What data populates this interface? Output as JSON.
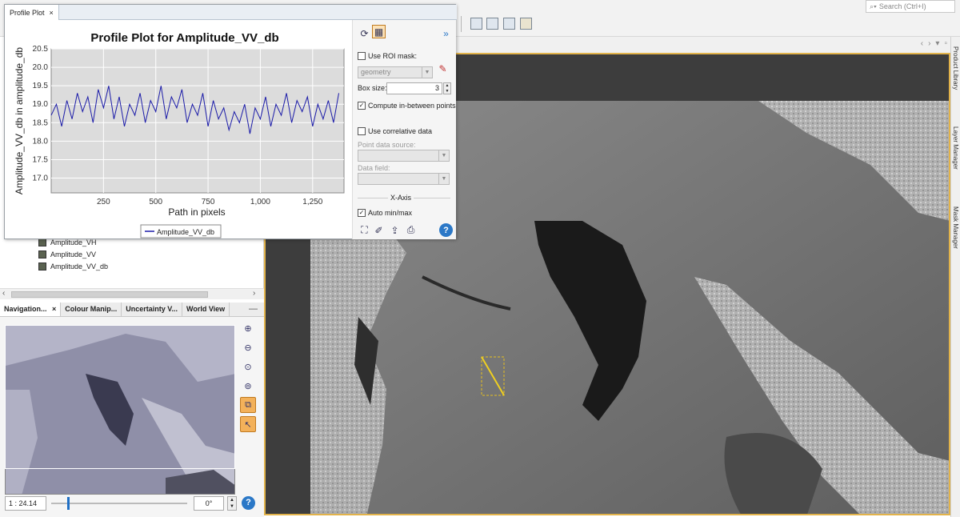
{
  "toolbar": {
    "search_placeholder": "Search (Ctrl+I)"
  },
  "profile_window": {
    "tab_label": "Profile Plot",
    "tab_close": "×",
    "collapse_label": "»",
    "chart_data": {
      "type": "line",
      "title": "Profile Plot for Amplitude_VV_db",
      "xlabel": "Path in pixels",
      "ylabel": "Amplitude_VV_db in amplitude_db",
      "x_ticks": [
        "250",
        "500",
        "750",
        "1,000",
        "1,250"
      ],
      "x_tick_values": [
        250,
        500,
        750,
        1000,
        1250
      ],
      "y_ticks": [
        "17.0",
        "17.5",
        "18.0",
        "18.5",
        "19.0",
        "19.5",
        "20.0",
        "20.5"
      ],
      "y_tick_values": [
        17.0,
        17.5,
        18.0,
        18.5,
        19.0,
        19.5,
        20.0,
        20.5
      ],
      "xlim": [
        0,
        1400
      ],
      "ylim": [
        16.6,
        20.5
      ],
      "grid": true,
      "legend_position": "bottom",
      "series": [
        {
          "name": "Amplitude_VV_db",
          "color": "#1a1aa8",
          "x": [
            0,
            25,
            50,
            75,
            100,
            125,
            150,
            175,
            200,
            225,
            250,
            275,
            300,
            325,
            350,
            375,
            400,
            425,
            450,
            475,
            500,
            525,
            550,
            575,
            600,
            625,
            650,
            675,
            700,
            725,
            750,
            775,
            800,
            825,
            850,
            875,
            900,
            925,
            950,
            975,
            1000,
            1025,
            1050,
            1075,
            1100,
            1125,
            1150,
            1175,
            1200,
            1225,
            1250,
            1275,
            1300,
            1325,
            1350,
            1375
          ],
          "y": [
            18.7,
            19.0,
            18.4,
            19.1,
            18.6,
            19.3,
            18.8,
            19.2,
            18.5,
            19.4,
            18.9,
            19.5,
            18.6,
            19.2,
            18.4,
            19.0,
            18.7,
            19.3,
            18.5,
            19.1,
            18.8,
            19.5,
            18.6,
            19.2,
            18.9,
            19.4,
            18.5,
            19.0,
            18.7,
            19.3,
            18.4,
            19.1,
            18.6,
            18.9,
            18.3,
            18.8,
            18.5,
            19.0,
            18.2,
            18.9,
            18.6,
            19.2,
            18.4,
            19.0,
            18.7,
            19.3,
            18.5,
            19.1,
            18.8,
            19.2,
            18.4,
            19.0,
            18.6,
            19.1,
            18.5,
            19.3
          ]
        }
      ]
    },
    "side_panel": {
      "use_roi_mask": "Use ROI mask:",
      "roi_mask_value": "geometry",
      "box_size_label": "Box size:",
      "box_size_value": "3",
      "compute_between": "Compute in-between points",
      "use_correlative": "Use correlative data",
      "point_source_label": "Point data source:",
      "data_field_label": "Data field:",
      "x_axis_label": "X-Axis",
      "auto_minmax": "Auto min/max",
      "help": "?"
    }
  },
  "product_tree": {
    "items": [
      "Amplitude_VH",
      "Amplitude_VV",
      "Amplitude_VV_db"
    ]
  },
  "navigation": {
    "tabs": [
      "Navigation...",
      "Colour Manip...",
      "Uncertainty V...",
      "World View"
    ],
    "tab_close": "×",
    "minimize": "—",
    "scale_value": "1 : 24.14",
    "angle_value": "0°",
    "help": "?"
  },
  "right_panel": {
    "tabs": [
      "Product Library",
      "Layer Manager",
      "Mask Manager"
    ]
  },
  "colors": {
    "view_border": "#e2b34a",
    "selected_tool": "#f3b15a",
    "line_series": "#1a1aa8"
  }
}
